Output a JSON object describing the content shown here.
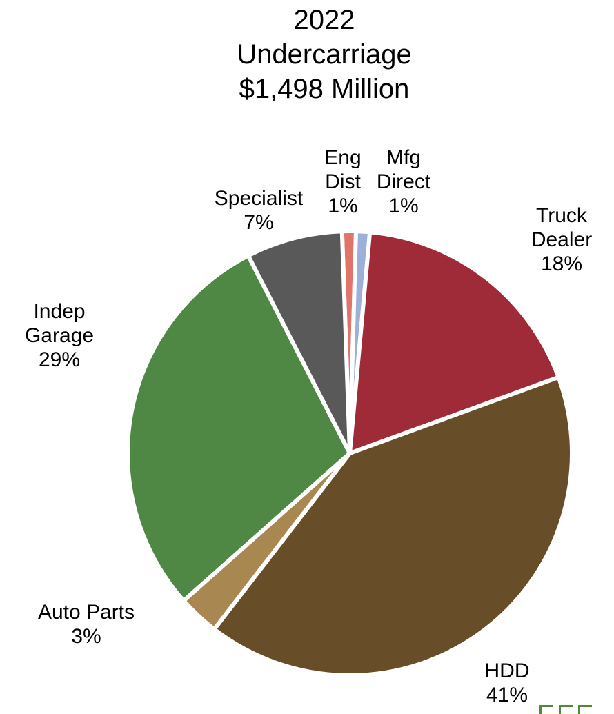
{
  "chart_data": {
    "type": "pie",
    "title_lines": [
      "2022",
      "Undercarriage",
      "$1,498 Million"
    ],
    "slices": [
      {
        "label_lines": [
          "Eng",
          "Dist"
        ],
        "value": 1,
        "value_label": "1%",
        "color": "#e0736a"
      },
      {
        "label_lines": [
          "Mfg",
          "Direct"
        ],
        "value": 1,
        "value_label": "1%",
        "color": "#9cb0d9"
      },
      {
        "label_lines": [
          "Truck",
          "Dealer"
        ],
        "value": 18,
        "value_label": "18%",
        "color": "#9f2a38"
      },
      {
        "label_lines": [
          "HDD"
        ],
        "value": 41,
        "value_label": "41%",
        "color": "#674e29"
      },
      {
        "label_lines": [
          "Auto Parts"
        ],
        "value": 3,
        "value_label": "3%",
        "color": "#a98751"
      },
      {
        "label_lines": [
          "Indep",
          "Garage"
        ],
        "value": 29,
        "value_label": "29%",
        "color": "#4f8744"
      },
      {
        "label_lines": [
          "Specialist"
        ],
        "value": 7,
        "value_label": "7%",
        "color": "#595959"
      }
    ]
  }
}
